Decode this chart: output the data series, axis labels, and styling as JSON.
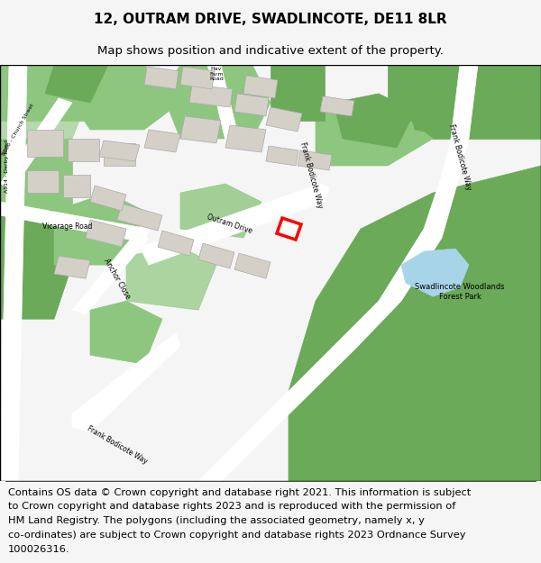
{
  "title": "12, OUTRAM DRIVE, SWADLINCOTE, DE11 8LR",
  "subtitle": "Map shows position and indicative extent of the property.",
  "footer_lines": [
    "Contains OS data © Crown copyright and database right 2021. This information is subject",
    "to Crown copyright and database rights 2023 and is reproduced with the permission of",
    "HM Land Registry. The polygons (including the associated geometry, namely x, y",
    "co-ordinates) are subject to Crown copyright and database rights 2023 Ordnance Survey",
    "100026316."
  ],
  "title_fontsize": 11,
  "subtitle_fontsize": 9.5,
  "footer_fontsize": 8.2,
  "bg_color": "#f5f5f5",
  "map_bg": "#e8e8e8",
  "road_color": "#ffffff",
  "green_color": "#8dc67e",
  "dark_green": "#6aaa58",
  "building_color": "#d4d0c8",
  "property_color": "#ff0000",
  "water_color": "#a8d4e8",
  "footer_bg": "#ffffff"
}
